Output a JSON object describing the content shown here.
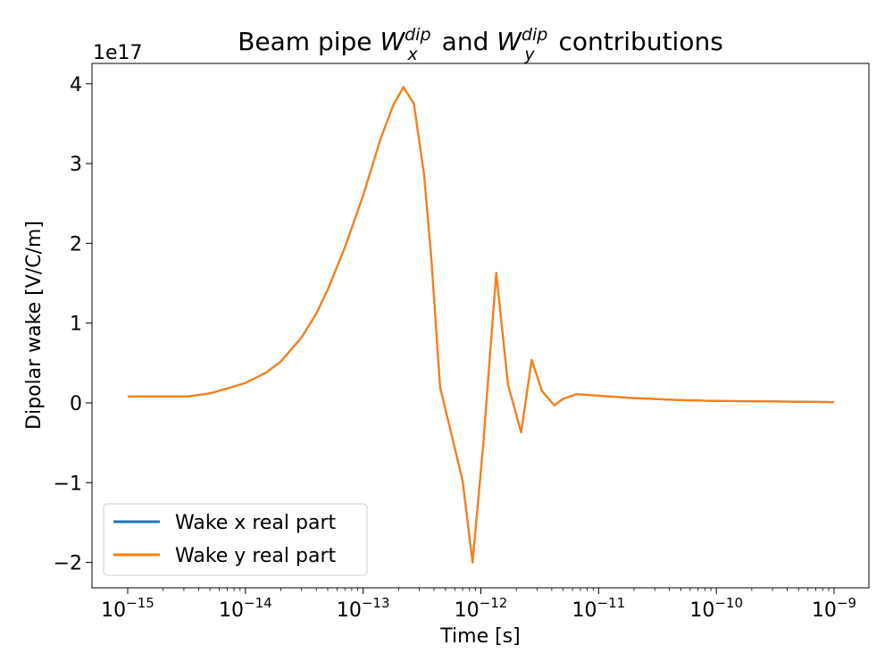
{
  "chart_data": {
    "type": "line",
    "title": {
      "prefix": "Beam pipe ",
      "wx": {
        "base": "W",
        "sub": "x",
        "sup": "dip"
      },
      "middle": " and ",
      "wy": {
        "base": "W",
        "sub": "y",
        "sup": "dip"
      },
      "suffix": " contributions"
    },
    "xlabel": "Time [s]",
    "ylabel": "Dipolar wake [V/C/m]",
    "x_scale": "log",
    "xlim": [
      1e-15,
      1e-09
    ],
    "ylim": [
      -2.3e+17,
      4.2e+17
    ],
    "y_offset_label": "1e17",
    "x_ticks": [
      {
        "mantissa": "10",
        "exp": "−15",
        "value": 1e-15
      },
      {
        "mantissa": "10",
        "exp": "−14",
        "value": 1e-14
      },
      {
        "mantissa": "10",
        "exp": "−13",
        "value": 1e-13
      },
      {
        "mantissa": "10",
        "exp": "−12",
        "value": 1e-12
      },
      {
        "mantissa": "10",
        "exp": "−11",
        "value": 1e-11
      },
      {
        "mantissa": "10",
        "exp": "−10",
        "value": 1e-10
      },
      {
        "mantissa": "10",
        "exp": "−9",
        "value": 1e-09
      }
    ],
    "y_ticks": [
      {
        "label": "4",
        "value": 4e+17
      },
      {
        "label": "3",
        "value": 3e+17
      },
      {
        "label": "2",
        "value": 2e+17
      },
      {
        "label": "1",
        "value": 1e+17
      },
      {
        "label": "0",
        "value": 0
      },
      {
        "label": "−1",
        "value": -1e+17
      },
      {
        "label": "−2",
        "value": -2e+17
      }
    ],
    "legend_placement": "lower-left",
    "grid": false,
    "series": [
      {
        "name": "Wake x real part",
        "color": "#1f77b4",
        "x": [
          1e-15,
          2e-15,
          3.2e-15,
          5e-15,
          7e-15,
          1e-14,
          1.5e-14,
          2e-14,
          3e-14,
          4e-14,
          5e-14,
          7e-14,
          1e-13,
          1.4e-13,
          1.8e-13,
          2.2e-13,
          2.7e-13,
          3.3e-13,
          3.8e-13,
          4.5e-13,
          7e-13,
          8.5e-13,
          1.05e-12,
          1.35e-12,
          1.7e-12,
          2.2e-12,
          2.7e-12,
          3.3e-12,
          4.2e-12,
          5e-12,
          6.5e-12,
          1e-11,
          2e-11,
          5e-11,
          1e-10,
          3e-10,
          1e-09
        ],
        "y": [
          8000000000000000.0,
          8000000000000000.0,
          8000000000000000.0,
          1.2e+16,
          1.8e+16,
          2.5e+16,
          3.8e+16,
          5.2e+16,
          8.2e+16,
          1.12e+17,
          1.42e+17,
          1.95e+17,
          2.6e+17,
          3.3e+17,
          3.73e+17,
          3.96e+17,
          3.75e+17,
          2.85e+17,
          1.8e+17,
          2e+16,
          -9.8e+16,
          -2e+17,
          -5e+16,
          1.63e+17,
          2.3e+16,
          -3.7e+16,
          5.4e+16,
          1.5e+16,
          -3000000000000000.0,
          5000000000000000.0,
          1.1e+16,
          9000000000000000.0,
          6000000000000000.0,
          3500000000000000.0,
          2500000000000000.0,
          1800000000000000.0,
          1000000000000000.0
        ]
      },
      {
        "name": "Wake y real part",
        "color": "#ff7f0e",
        "x": [
          1e-15,
          2e-15,
          3.2e-15,
          5e-15,
          7e-15,
          1e-14,
          1.5e-14,
          2e-14,
          3e-14,
          4e-14,
          5e-14,
          7e-14,
          1e-13,
          1.4e-13,
          1.8e-13,
          2.2e-13,
          2.7e-13,
          3.3e-13,
          3.8e-13,
          4.5e-13,
          7e-13,
          8.5e-13,
          1.05e-12,
          1.35e-12,
          1.7e-12,
          2.2e-12,
          2.7e-12,
          3.3e-12,
          4.2e-12,
          5e-12,
          6.5e-12,
          1e-11,
          2e-11,
          5e-11,
          1e-10,
          3e-10,
          1e-09
        ],
        "y": [
          8000000000000000.0,
          8000000000000000.0,
          8000000000000000.0,
          1.2e+16,
          1.8e+16,
          2.5e+16,
          3.8e+16,
          5.2e+16,
          8.2e+16,
          1.12e+17,
          1.42e+17,
          1.95e+17,
          2.6e+17,
          3.3e+17,
          3.73e+17,
          3.96e+17,
          3.75e+17,
          2.85e+17,
          1.8e+17,
          2e+16,
          -9.8e+16,
          -2e+17,
          -5e+16,
          1.63e+17,
          2.3e+16,
          -3.7e+16,
          5.4e+16,
          1.5e+16,
          -3000000000000000.0,
          5000000000000000.0,
          1.1e+16,
          9000000000000000.0,
          6000000000000000.0,
          3500000000000000.0,
          2500000000000000.0,
          1800000000000000.0,
          1000000000000000.0
        ]
      }
    ]
  }
}
